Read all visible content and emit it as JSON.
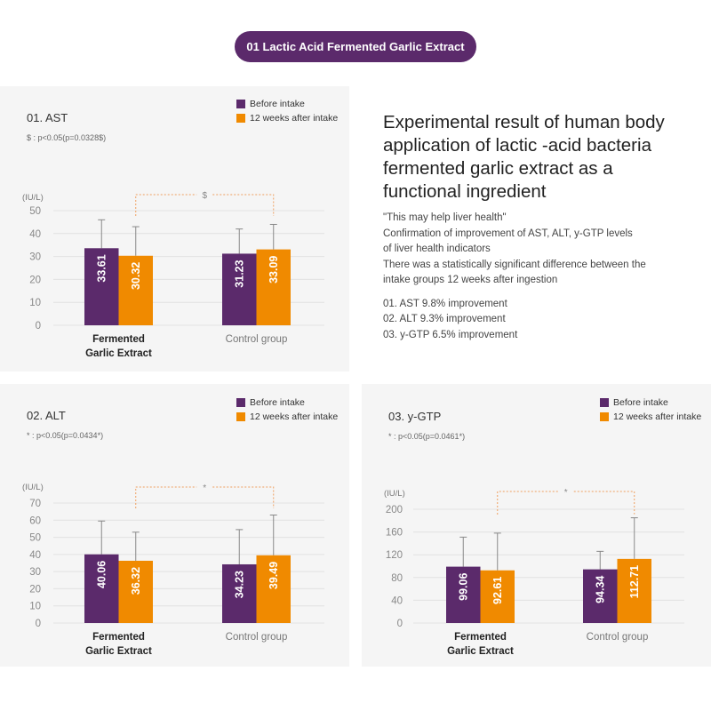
{
  "header": {
    "badge": "01 Lactic Acid Fermented Garlic Extract"
  },
  "colors": {
    "before": "#5b2a6b",
    "after": "#f08a00",
    "bracket": "#f0a060"
  },
  "legend": {
    "before": "Before intake",
    "after": "12 weeks after intake"
  },
  "summary": {
    "title": [
      "Experimental result of human body",
      "application of lactic -acid bacteria",
      "fermented garlic extract as a",
      "functional ingredient"
    ],
    "body": [
      "\"This may help liver health\"",
      "Confirmation of improvement of AST, ALT, y-GTP levels",
      "of liver health indicators",
      "There was a statistically significant difference between the",
      "intake groups 12 weeks after ingestion"
    ],
    "list": [
      "01. AST 9.8% improvement",
      "02. ALT 9.3% improvement",
      "03. y-GTP 6.5% improvement"
    ]
  },
  "chart_data": [
    {
      "type": "bar",
      "title": "01. AST",
      "note": "$ : p<0.05(p=0.0328$)",
      "ylabel": "(IU/L)",
      "ylim": [
        0,
        50
      ],
      "yticks": [
        "0",
        "10",
        "20",
        "30",
        "40",
        "50"
      ],
      "categories": [
        "Fermented Garlic Extract",
        "Control group"
      ],
      "category_lines": [
        [
          "Fermented",
          "Garlic Extract"
        ],
        [
          "Control group"
        ]
      ],
      "series": [
        {
          "name": "Before intake",
          "values": [
            33.61,
            31.23
          ],
          "labels": [
            "33.61",
            "31.23"
          ],
          "error_top": [
            46,
            42
          ]
        },
        {
          "name": "12 weeks after intake",
          "values": [
            30.32,
            33.09
          ],
          "labels": [
            "30.32",
            "33.09"
          ],
          "error_top": [
            43,
            44
          ]
        }
      ],
      "significance": "$",
      "grid": true,
      "legend": "top-right"
    },
    {
      "type": "bar",
      "title": "02. ALT",
      "note": "* : p<0.05(p=0.0434*)",
      "ylabel": "(IU/L)",
      "ylim": [
        0,
        70
      ],
      "yticks": [
        "0",
        "10",
        "20",
        "30",
        "40",
        "50",
        "60",
        "70"
      ],
      "categories": [
        "Fermented Garlic Extract",
        "Control group"
      ],
      "category_lines": [
        [
          "Fermented",
          "Garlic Extract"
        ],
        [
          "Control group"
        ]
      ],
      "series": [
        {
          "name": "Before intake",
          "values": [
            40.06,
            34.23
          ],
          "labels": [
            "40.06",
            "34.23"
          ],
          "error_top": [
            59.5,
            54.5
          ]
        },
        {
          "name": "12 weeks after intake",
          "values": [
            36.32,
            39.49
          ],
          "labels": [
            "36.32",
            "39.49"
          ],
          "error_top": [
            53,
            63
          ]
        }
      ],
      "significance": "*",
      "grid": true,
      "legend": "top-right"
    },
    {
      "type": "bar",
      "title": "03. y-GTP",
      "note": "* : p<0.05(p=0.0461*)",
      "ylabel": "(IU/L)",
      "ylim": [
        0,
        200
      ],
      "yticks": [
        "0",
        "40",
        "80",
        "120",
        "160",
        "200"
      ],
      "categories": [
        "Fermented Garlic Extract",
        "Control group"
      ],
      "category_lines": [
        [
          "Fermented",
          "Garlic Extract"
        ],
        [
          "Control group"
        ]
      ],
      "series": [
        {
          "name": "Before intake",
          "values": [
            99.06,
            94.34
          ],
          "labels": [
            "99.06",
            "94.34"
          ],
          "error_top": [
            151,
            126
          ]
        },
        {
          "name": "12 weeks after intake",
          "values": [
            92.61,
            112.71
          ],
          "labels": [
            "92.61",
            "112.71"
          ],
          "error_top": [
            158,
            185
          ]
        }
      ],
      "significance": "*",
      "grid": true,
      "legend": "top-right"
    }
  ]
}
